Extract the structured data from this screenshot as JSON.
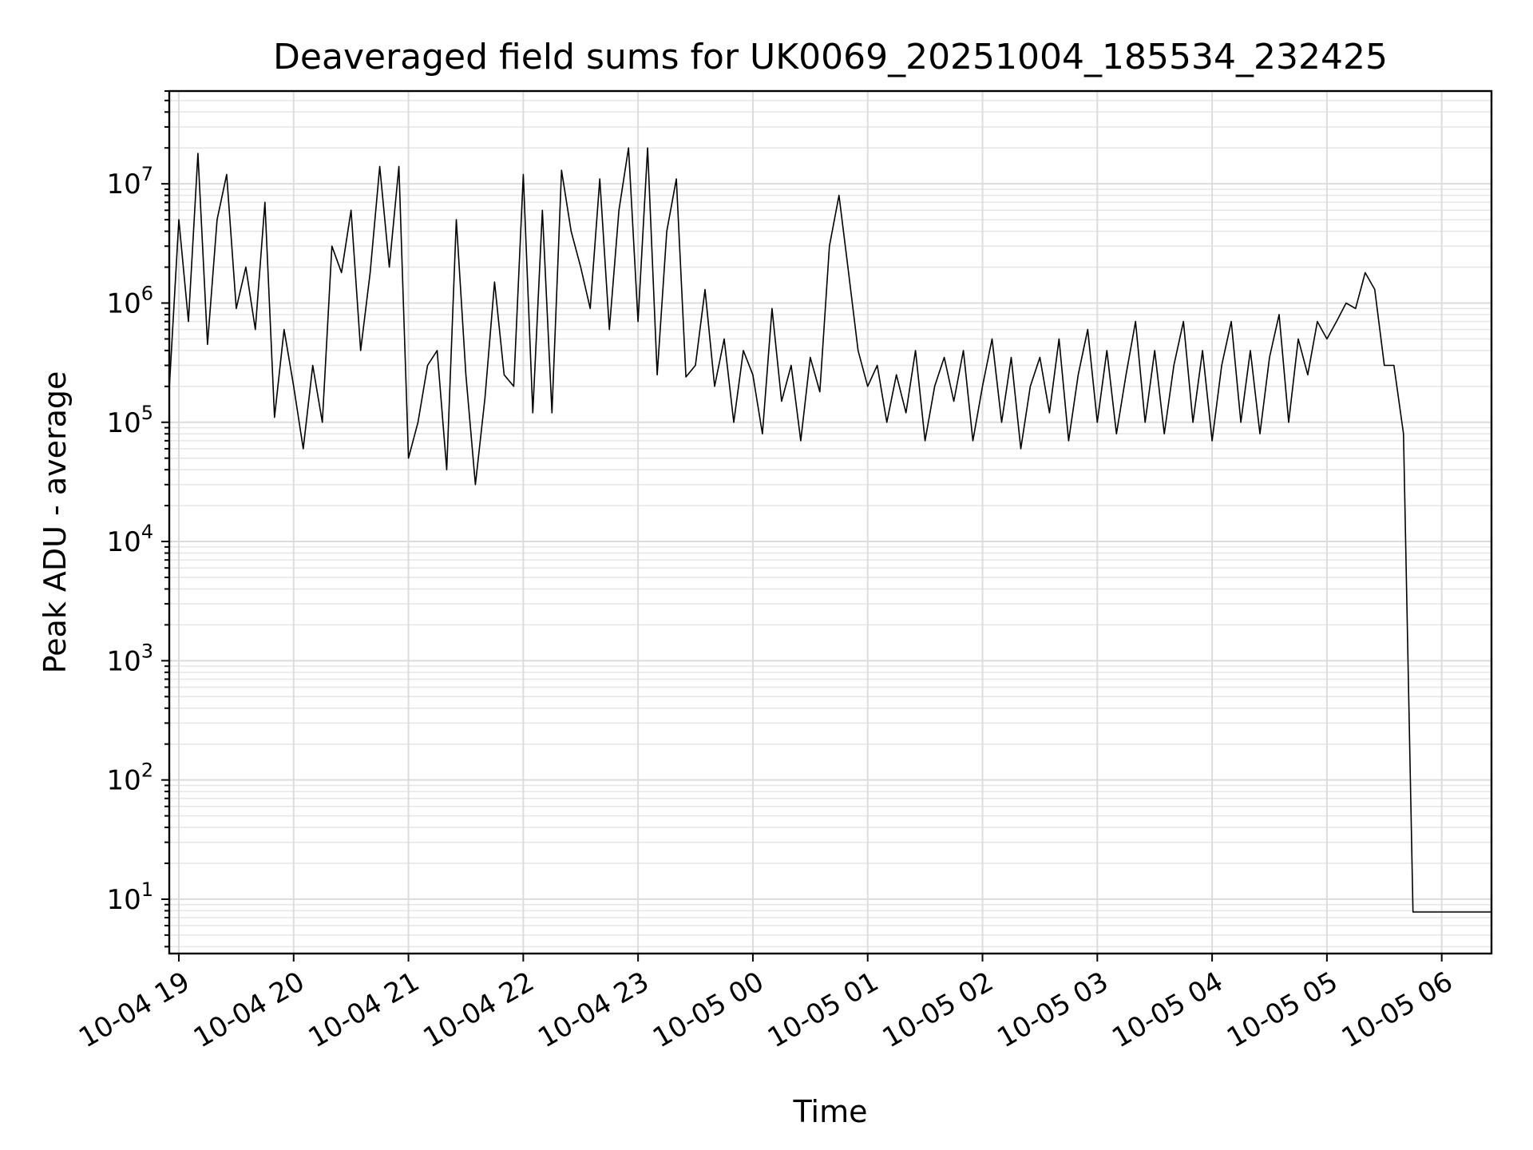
{
  "chart_data": {
    "type": "line",
    "title": "Deaveraged field sums for UK0069_20251004_185534_232425",
    "xlabel": "Time",
    "ylabel": "Peak ADU - average",
    "y_scale": "log",
    "ylim": [
      3.5,
      60000000
    ],
    "xlim": [
      "2025-10-04 18:55",
      "2025-10-05 06:26"
    ],
    "grid": true,
    "x_ticks": [
      "10-04 19",
      "10-04 20",
      "10-04 21",
      "10-04 22",
      "10-04 23",
      "10-05 00",
      "10-05 01",
      "10-05 02",
      "10-05 03",
      "10-05 04",
      "10-05 05",
      "10-05 06"
    ],
    "y_ticks": [
      {
        "base": "10",
        "exp": "1",
        "value": 10
      },
      {
        "base": "10",
        "exp": "2",
        "value": 100
      },
      {
        "base": "10",
        "exp": "3",
        "value": 1000
      },
      {
        "base": "10",
        "exp": "4",
        "value": 10000
      },
      {
        "base": "10",
        "exp": "5",
        "value": 100000
      },
      {
        "base": "10",
        "exp": "6",
        "value": 1000000
      },
      {
        "base": "10",
        "exp": "7",
        "value": 10000000
      }
    ],
    "line_color": "#000000",
    "series": [
      {
        "x": [
          "2025-10-04 18:55",
          "2025-10-04 19:00",
          "2025-10-04 19:05",
          "2025-10-04 19:10",
          "2025-10-04 19:15",
          "2025-10-04 19:20",
          "2025-10-04 19:25",
          "2025-10-04 19:30",
          "2025-10-04 19:35",
          "2025-10-04 19:40",
          "2025-10-04 19:45",
          "2025-10-04 19:50",
          "2025-10-04 19:55",
          "2025-10-04 20:00",
          "2025-10-04 20:05",
          "2025-10-04 20:10",
          "2025-10-04 20:15",
          "2025-10-04 20:20",
          "2025-10-04 20:25",
          "2025-10-04 20:30",
          "2025-10-04 20:35",
          "2025-10-04 20:40",
          "2025-10-04 20:45",
          "2025-10-04 20:50",
          "2025-10-04 20:55",
          "2025-10-04 21:00",
          "2025-10-04 21:05",
          "2025-10-04 21:10",
          "2025-10-04 21:15",
          "2025-10-04 21:20",
          "2025-10-04 21:25",
          "2025-10-04 21:30",
          "2025-10-04 21:35",
          "2025-10-04 21:40",
          "2025-10-04 21:45",
          "2025-10-04 21:50",
          "2025-10-04 21:55",
          "2025-10-04 22:00",
          "2025-10-04 22:05",
          "2025-10-04 22:10",
          "2025-10-04 22:15",
          "2025-10-04 22:20",
          "2025-10-04 22:25",
          "2025-10-04 22:30",
          "2025-10-04 22:35",
          "2025-10-04 22:40",
          "2025-10-04 22:45",
          "2025-10-04 22:50",
          "2025-10-04 22:55",
          "2025-10-04 23:00",
          "2025-10-04 23:05",
          "2025-10-04 23:10",
          "2025-10-04 23:15",
          "2025-10-04 23:20",
          "2025-10-04 23:25",
          "2025-10-04 23:30",
          "2025-10-04 23:35",
          "2025-10-04 23:40",
          "2025-10-04 23:45",
          "2025-10-04 23:50",
          "2025-10-04 23:55",
          "2025-10-05 00:00",
          "2025-10-05 00:05",
          "2025-10-05 00:10",
          "2025-10-05 00:15",
          "2025-10-05 00:20",
          "2025-10-05 00:25",
          "2025-10-05 00:30",
          "2025-10-05 00:35",
          "2025-10-05 00:40",
          "2025-10-05 00:45",
          "2025-10-05 00:50",
          "2025-10-05 00:55",
          "2025-10-05 01:00",
          "2025-10-05 01:05",
          "2025-10-05 01:10",
          "2025-10-05 01:15",
          "2025-10-05 01:20",
          "2025-10-05 01:25",
          "2025-10-05 01:30",
          "2025-10-05 01:35",
          "2025-10-05 01:40",
          "2025-10-05 01:45",
          "2025-10-05 01:50",
          "2025-10-05 01:55",
          "2025-10-05 02:00",
          "2025-10-05 02:05",
          "2025-10-05 02:10",
          "2025-10-05 02:15",
          "2025-10-05 02:20",
          "2025-10-05 02:25",
          "2025-10-05 02:30",
          "2025-10-05 02:35",
          "2025-10-05 02:40",
          "2025-10-05 02:45",
          "2025-10-05 02:50",
          "2025-10-05 02:55",
          "2025-10-05 03:00",
          "2025-10-05 03:05",
          "2025-10-05 03:10",
          "2025-10-05 03:15",
          "2025-10-05 03:20",
          "2025-10-05 03:25",
          "2025-10-05 03:30",
          "2025-10-05 03:35",
          "2025-10-05 03:40",
          "2025-10-05 03:45",
          "2025-10-05 03:50",
          "2025-10-05 03:55",
          "2025-10-05 04:00",
          "2025-10-05 04:05",
          "2025-10-05 04:10",
          "2025-10-05 04:15",
          "2025-10-05 04:20",
          "2025-10-05 04:25",
          "2025-10-05 04:30",
          "2025-10-05 04:35",
          "2025-10-05 04:40",
          "2025-10-05 04:45",
          "2025-10-05 04:50",
          "2025-10-05 04:55",
          "2025-10-05 05:00",
          "2025-10-05 05:05",
          "2025-10-05 05:10",
          "2025-10-05 05:15",
          "2025-10-05 05:20",
          "2025-10-05 05:25",
          "2025-10-05 05:30",
          "2025-10-05 05:35",
          "2025-10-05 05:40",
          "2025-10-05 05:45",
          "2025-10-05 05:50",
          "2025-10-05 05:55",
          "2025-10-05 06:00",
          "2025-10-05 06:05",
          "2025-10-05 06:10",
          "2025-10-05 06:15",
          "2025-10-05 06:20",
          "2025-10-05 06:26"
        ],
        "y": [
          190000,
          5000000,
          700000,
          18000000,
          450000,
          5000000,
          12000000,
          900000,
          2000000,
          600000,
          7000000,
          110000,
          600000,
          200000,
          60000,
          300000,
          100000,
          3000000,
          1800000,
          6000000,
          400000,
          1800000,
          14000000,
          2000000,
          14000000,
          50000,
          100000,
          300000,
          400000,
          40000,
          5000000,
          250000,
          30000,
          160000,
          1500000,
          250000,
          200000,
          12000000,
          120000,
          6000000,
          120000,
          13000000,
          4000000,
          2000000,
          900000,
          11000000,
          600000,
          6000000,
          20000000,
          700000,
          20000000,
          250000,
          4000000,
          11000000,
          240000,
          300000,
          1300000,
          200000,
          500000,
          100000,
          400000,
          250000,
          80000,
          900000,
          150000,
          300000,
          70000,
          350000,
          180000,
          3000000,
          8000000,
          1800000,
          400000,
          200000,
          300000,
          100000,
          250000,
          120000,
          400000,
          70000,
          200000,
          350000,
          150000,
          400000,
          70000,
          200000,
          500000,
          100000,
          350000,
          60000,
          200000,
          350000,
          120000,
          500000,
          70000,
          250000,
          600000,
          100000,
          400000,
          80000,
          250000,
          700000,
          100000,
          400000,
          80000,
          300000,
          700000,
          100000,
          400000,
          70000,
          300000,
          700000,
          100000,
          400000,
          80000,
          350000,
          800000,
          100000,
          500000,
          250000,
          700000,
          500000,
          700000,
          1000000,
          900000,
          1800000,
          1300000,
          300000,
          300000,
          80000,
          7.8,
          7.8,
          7.8,
          7.8,
          7.8,
          7.8,
          7.8,
          7.8,
          7.8
        ]
      }
    ]
  }
}
